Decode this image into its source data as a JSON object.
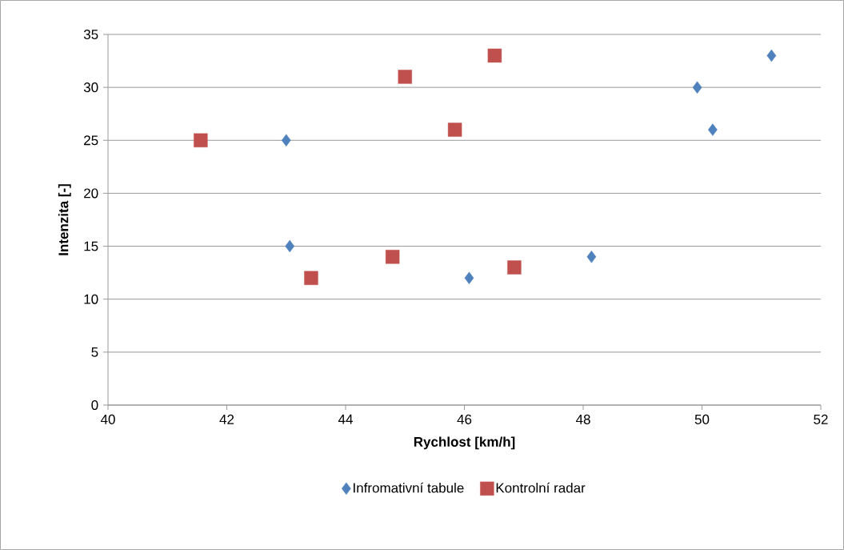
{
  "chart_data": {
    "type": "scatter",
    "xlabel": "Rychlost [km/h]",
    "ylabel": "Intenzita [-]",
    "xlim": [
      40,
      52
    ],
    "xticks": [
      40,
      42,
      44,
      46,
      48,
      50,
      52
    ],
    "ylim": [
      0,
      35
    ],
    "yticks": [
      0,
      5,
      10,
      15,
      20,
      25,
      30,
      35
    ],
    "grid": "y",
    "legend": "bottom",
    "series": [
      {
        "name": "Infromativní tabule",
        "color": "#4f81bd",
        "marker": "diamond",
        "x": [
          43.0,
          43.06,
          46.08,
          48.14,
          49.92,
          50.18,
          51.17
        ],
        "values": [
          25,
          15,
          12,
          14,
          30,
          26,
          33
        ]
      },
      {
        "name": "Kontrolní radar",
        "color": "#c0504d",
        "marker": "square",
        "x": [
          41.56,
          43.42,
          44.79,
          45.0,
          45.84,
          46.51,
          46.84
        ],
        "values": [
          25,
          12,
          14,
          31,
          26,
          33,
          13
        ]
      }
    ]
  }
}
